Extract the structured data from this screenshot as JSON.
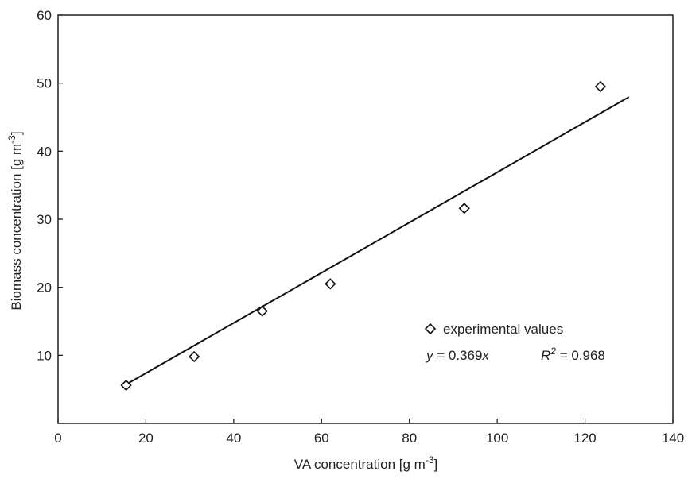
{
  "chart_data": {
    "type": "scatter",
    "title": "",
    "xlabel": "VA concentration [g m",
    "xlabel_sup": "-3",
    "xlabel_end": "]",
    "ylabel": "Biomass concentration [g m",
    "ylabel_sup": "-3",
    "ylabel_end": "]",
    "xlim": [
      0,
      140
    ],
    "ylim": [
      0,
      60
    ],
    "xticks": [
      0,
      20,
      40,
      60,
      80,
      100,
      120,
      140
    ],
    "yticks": [
      10,
      20,
      30,
      40,
      50,
      60
    ],
    "grid": false,
    "series": [
      {
        "name": "experimental values",
        "marker": "diamond",
        "points": [
          {
            "x": 15.5,
            "y": 5.6
          },
          {
            "x": 31.0,
            "y": 9.8
          },
          {
            "x": 46.5,
            "y": 16.5
          },
          {
            "x": 62.0,
            "y": 20.5
          },
          {
            "x": 92.5,
            "y": 31.6
          },
          {
            "x": 123.5,
            "y": 49.5
          }
        ]
      }
    ],
    "fit_line": {
      "slope": 0.369,
      "x_start": 15.5,
      "x_end": 130
    },
    "legend": {
      "position": "bottom-right",
      "entry": "experimental values",
      "equation_prefix": "y",
      "equation_rest": " = 0.369",
      "equation_var": "x",
      "r2_label": "R",
      "r2_sup": "2",
      "r2_value": " = 0.968"
    }
  }
}
